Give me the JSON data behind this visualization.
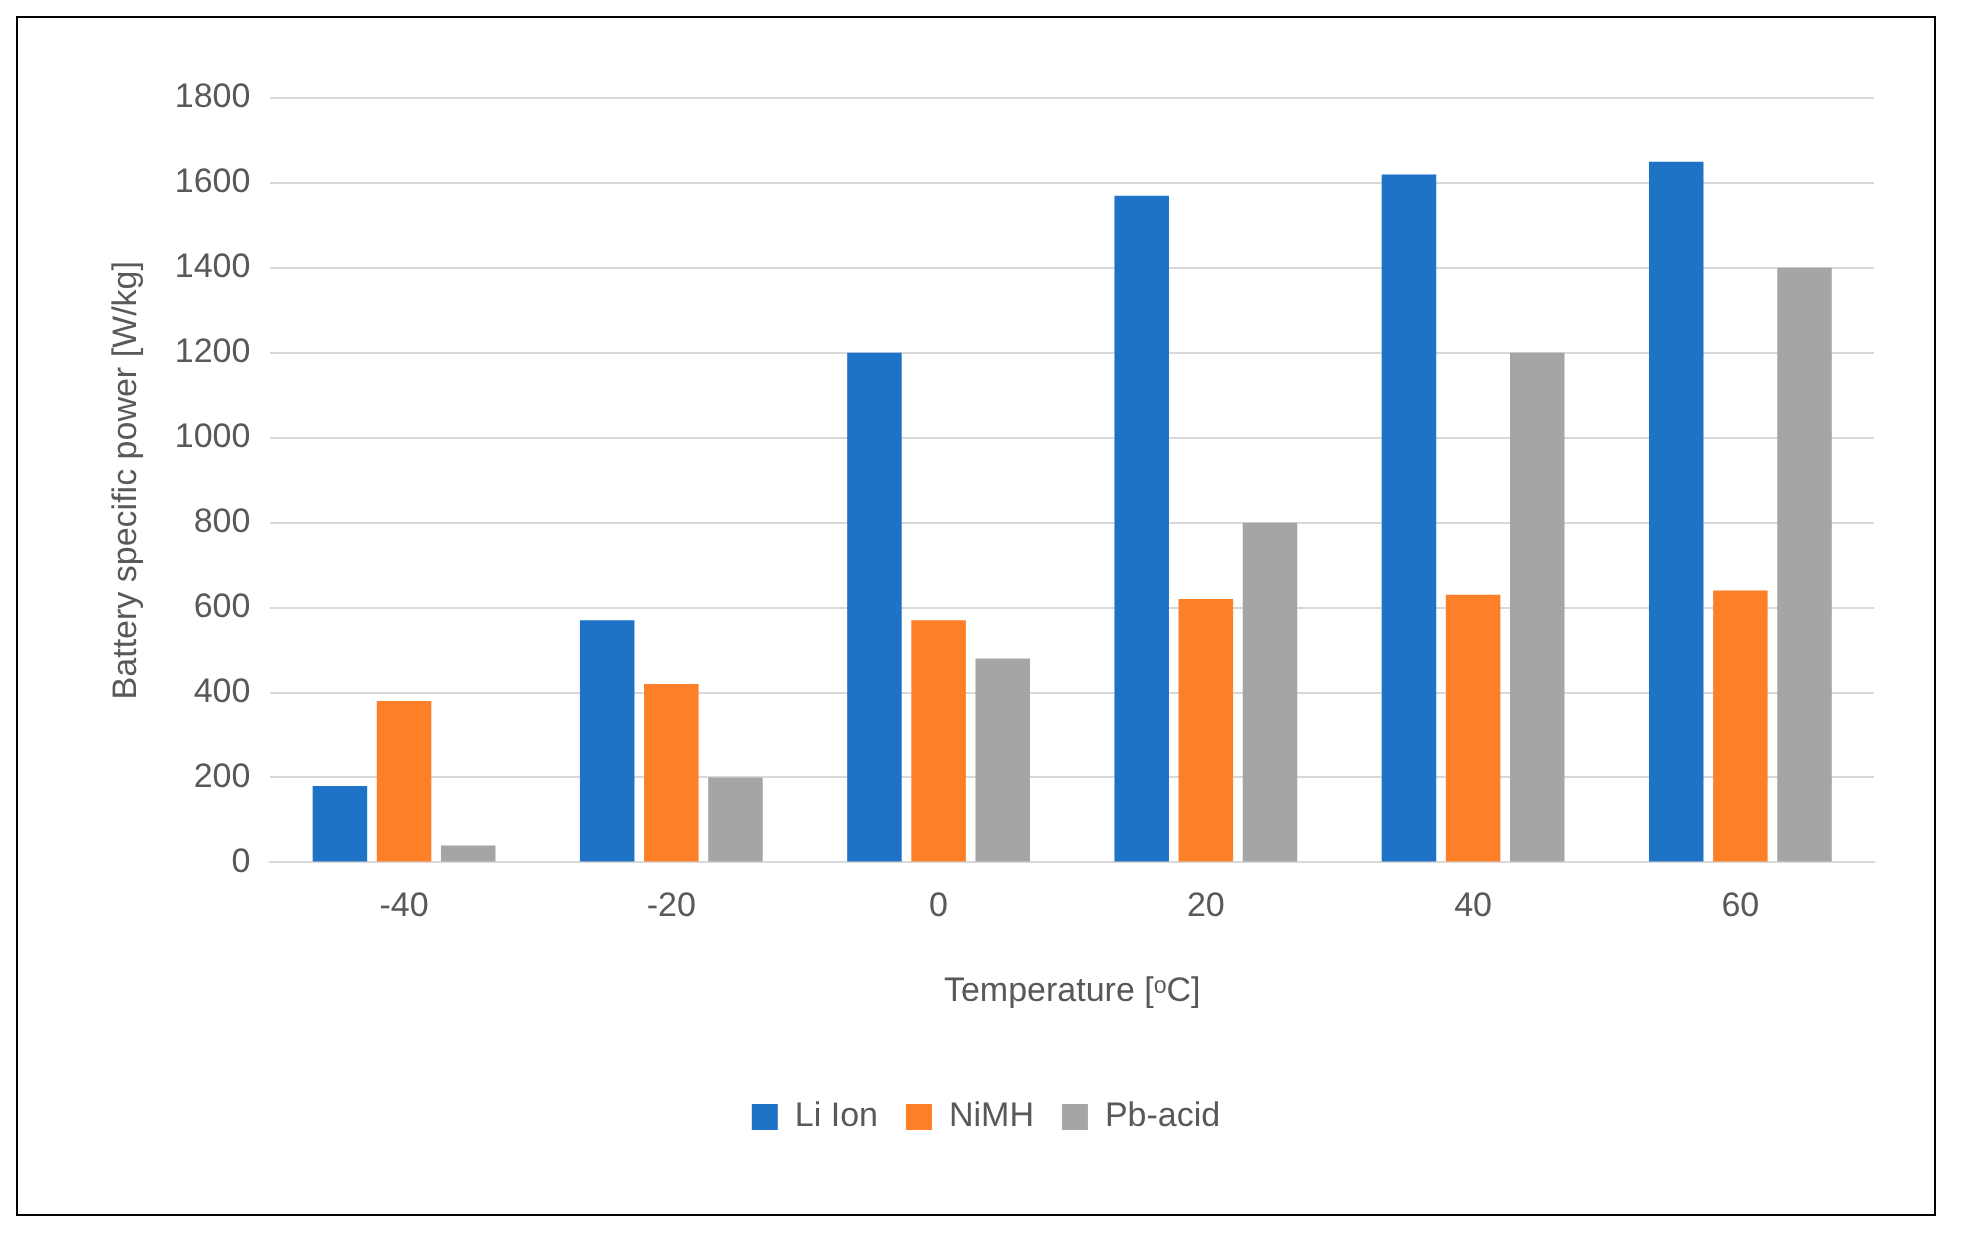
{
  "chart_data": {
    "type": "bar",
    "xlabel": "Temperature [ᵒC]",
    "ylabel": "Battery specific power [W/kg]",
    "categories": [
      "-40",
      "-20",
      "0",
      "20",
      "40",
      "60"
    ],
    "series": [
      {
        "name": "Li Ion",
        "color": "#1f73c7",
        "values": [
          180,
          570,
          1200,
          1570,
          1620,
          1650
        ]
      },
      {
        "name": "NiMH",
        "color": "#fd7f27",
        "values": [
          380,
          420,
          570,
          620,
          630,
          640
        ]
      },
      {
        "name": "Pb-acid",
        "color": "#a5a5a5",
        "values": [
          40,
          200,
          480,
          800,
          1200,
          1400
        ]
      }
    ],
    "ylim": [
      0,
      1800
    ],
    "yticks": [
      0,
      200,
      400,
      600,
      800,
      1000,
      1200,
      1400,
      1600,
      1800
    ],
    "grid": "y",
    "legend": "bottom"
  }
}
